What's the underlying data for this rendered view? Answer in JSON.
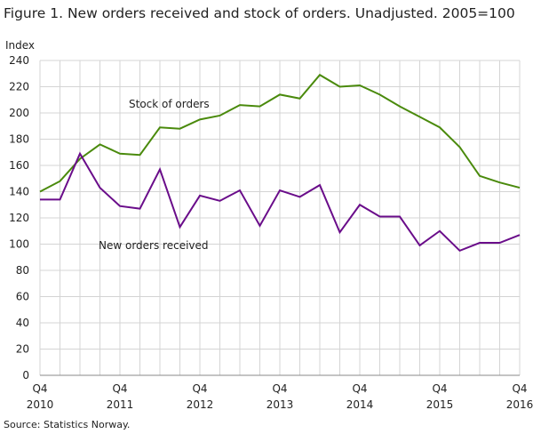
{
  "chart_data": {
    "type": "line",
    "title": "Figure 1. New orders received and stock of orders. Unadjusted. 2005=100",
    "ylabel": "Index",
    "ylim": [
      0,
      240
    ],
    "yticks": [
      0,
      20,
      40,
      60,
      80,
      100,
      120,
      140,
      160,
      180,
      200,
      220,
      240
    ],
    "xtick_labels": [
      {
        "q": "Q4",
        "y": "2010",
        "i": 0
      },
      {
        "q": "Q4",
        "y": "2011",
        "i": 4
      },
      {
        "q": "Q4",
        "y": "2012",
        "i": 8
      },
      {
        "q": "Q4",
        "y": "2013",
        "i": 12
      },
      {
        "q": "Q4",
        "y": "2014",
        "i": 16
      },
      {
        "q": "Q4",
        "y": "2015",
        "i": 20
      },
      {
        "q": "Q4",
        "y": "2016",
        "i": 24
      }
    ],
    "series": [
      {
        "name": "Stock of orders",
        "color": "#4a8a0c",
        "values": [
          140,
          148,
          165,
          176,
          169,
          168,
          189,
          188,
          195,
          198,
          206,
          205,
          214,
          211,
          229,
          220,
          221,
          214,
          205,
          197,
          189,
          174,
          152,
          147,
          143
        ]
      },
      {
        "name": "New orders received",
        "color": "#6a0d8a",
        "values": [
          134,
          134,
          169,
          143,
          129,
          127,
          157,
          113,
          137,
          133,
          141,
          114,
          141,
          136,
          145,
          109,
          130,
          121,
          121,
          99,
          110,
          95,
          101,
          101,
          107
        ]
      }
    ],
    "source": "Source: Statistics Norway."
  }
}
